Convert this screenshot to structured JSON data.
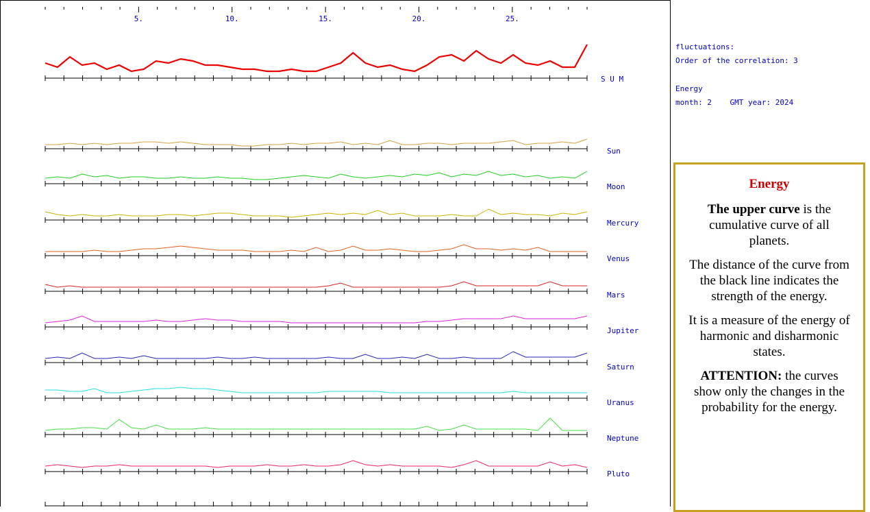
{
  "info": {
    "line1": "fluctuations:",
    "line2": "Order of the correlation: 3",
    "line3": "Energy",
    "line4": "month: 2    GMT year: 2024"
  },
  "legend": {
    "title": "Energy",
    "p1_bold": "The upper curve",
    "p1_rest": " is the cumulative curve of all planets.",
    "p2": "The distance of the curve from the black line indicates the strength of the energy.",
    "p3": "It is a measure of the energy of harmonic and disharmonic states.",
    "p4_bold": "ATTENTION:",
    "p4_rest": " the curves show only the changes in the probability for the energy."
  },
  "chart_data": {
    "type": "line",
    "x_ticks": [
      "5.",
      "10.",
      "15.",
      "20.",
      "25."
    ],
    "x_range": [
      0,
      29
    ],
    "series": [
      {
        "name": "S U M",
        "color": "#ee0000",
        "values": [
          6,
          4,
          9,
          5,
          6,
          3,
          5,
          2,
          3,
          7,
          6,
          8,
          7,
          5,
          5,
          4,
          3,
          3,
          2,
          2,
          3,
          2,
          2,
          4,
          6,
          11,
          6,
          4,
          5,
          3,
          2,
          5,
          9,
          10,
          7,
          12,
          8,
          6,
          10,
          6,
          5,
          7,
          4,
          4,
          15
        ]
      },
      {
        "name": "Sun",
        "color": "#d4a040",
        "values": [
          1,
          1,
          2,
          1,
          2,
          1,
          2,
          2,
          3,
          3,
          2,
          3,
          2,
          1,
          1,
          1,
          0,
          0,
          1,
          1,
          2,
          1,
          2,
          2,
          3,
          1,
          2,
          1,
          4,
          1,
          1,
          2,
          2,
          1,
          2,
          2,
          2,
          3,
          4,
          1,
          2,
          2,
          3,
          2,
          5
        ]
      },
      {
        "name": "Moon",
        "color": "#22cc22",
        "values": [
          2,
          3,
          2,
          5,
          3,
          4,
          2,
          3,
          3,
          2,
          2,
          3,
          2,
          2,
          3,
          2,
          2,
          1,
          1,
          2,
          3,
          4,
          3,
          2,
          5,
          3,
          2,
          3,
          4,
          3,
          5,
          4,
          6,
          3,
          5,
          4,
          7,
          4,
          5,
          3,
          4,
          2,
          3,
          2,
          7
        ]
      },
      {
        "name": "Mercury",
        "color": "#c8b400",
        "values": [
          4,
          2,
          1,
          2,
          1,
          1,
          2,
          1,
          1,
          1,
          2,
          2,
          1,
          2,
          3,
          3,
          2,
          1,
          1,
          1,
          0,
          1,
          2,
          3,
          2,
          3,
          2,
          5,
          2,
          3,
          1,
          1,
          1,
          2,
          1,
          1,
          6,
          2,
          3,
          2,
          2,
          1,
          3,
          2,
          4
        ]
      },
      {
        "name": "Venus",
        "color": "#e06020",
        "values": [
          1,
          1,
          1,
          1,
          2,
          1,
          1,
          2,
          3,
          3,
          4,
          5,
          4,
          3,
          2,
          2,
          2,
          1,
          1,
          1,
          2,
          1,
          4,
          1,
          2,
          5,
          2,
          2,
          3,
          2,
          1,
          1,
          2,
          3,
          6,
          3,
          3,
          2,
          3,
          2,
          4,
          1,
          1,
          1,
          1
        ]
      },
      {
        "name": "Mars",
        "color": "#dd2222",
        "values": [
          3,
          1,
          2,
          1,
          1,
          1,
          1,
          1,
          1,
          1,
          1,
          1,
          1,
          1,
          1,
          1,
          1,
          1,
          1,
          1,
          1,
          1,
          1,
          2,
          4,
          1,
          1,
          1,
          1,
          1,
          1,
          1,
          1,
          2,
          5,
          2,
          2,
          2,
          2,
          2,
          2,
          5,
          2,
          2,
          2
        ]
      },
      {
        "name": "Jupiter",
        "color": "#dd22dd",
        "values": [
          1,
          2,
          3,
          6,
          2,
          2,
          2,
          2,
          2,
          3,
          2,
          2,
          3,
          4,
          3,
          3,
          2,
          2,
          2,
          2,
          1,
          1,
          1,
          1,
          1,
          1,
          1,
          1,
          1,
          1,
          1,
          2,
          2,
          3,
          4,
          4,
          4,
          4,
          6,
          4,
          4,
          4,
          4,
          4,
          6
        ]
      },
      {
        "name": "Saturn",
        "color": "#2222bb",
        "values": [
          1,
          2,
          1,
          5,
          1,
          1,
          2,
          1,
          3,
          1,
          1,
          1,
          1,
          1,
          2,
          1,
          1,
          2,
          1,
          1,
          1,
          1,
          1,
          2,
          1,
          1,
          4,
          1,
          1,
          2,
          1,
          4,
          1,
          1,
          2,
          1,
          1,
          1,
          6,
          2,
          2,
          2,
          2,
          2,
          5
        ]
      },
      {
        "name": "Uranus",
        "color": "#22dddd",
        "values": [
          4,
          4,
          3,
          3,
          5,
          2,
          2,
          3,
          4,
          5,
          5,
          6,
          5,
          5,
          4,
          3,
          2,
          2,
          2,
          2,
          2,
          2,
          2,
          3,
          3,
          3,
          3,
          3,
          2,
          2,
          2,
          2,
          2,
          2,
          2,
          2,
          2,
          2,
          3,
          2,
          2,
          2,
          2,
          2,
          2
        ]
      },
      {
        "name": "Neptune",
        "color": "#44dd44",
        "values": [
          1,
          2,
          2,
          3,
          3,
          2,
          9,
          3,
          2,
          5,
          2,
          2,
          2,
          3,
          2,
          2,
          2,
          2,
          2,
          2,
          2,
          2,
          2,
          2,
          2,
          2,
          2,
          2,
          2,
          2,
          2,
          4,
          1,
          2,
          5,
          2,
          2,
          2,
          2,
          2,
          1,
          10,
          1,
          1,
          1
        ]
      },
      {
        "name": "Pluto",
        "color": "#ee2266",
        "values": [
          2,
          3,
          2,
          1,
          2,
          2,
          3,
          2,
          2,
          2,
          2,
          2,
          2,
          2,
          1,
          2,
          2,
          2,
          3,
          2,
          2,
          3,
          2,
          2,
          3,
          6,
          3,
          2,
          3,
          2,
          2,
          2,
          2,
          1,
          3,
          6,
          2,
          2,
          2,
          2,
          2,
          5,
          2,
          3,
          1
        ]
      }
    ]
  }
}
